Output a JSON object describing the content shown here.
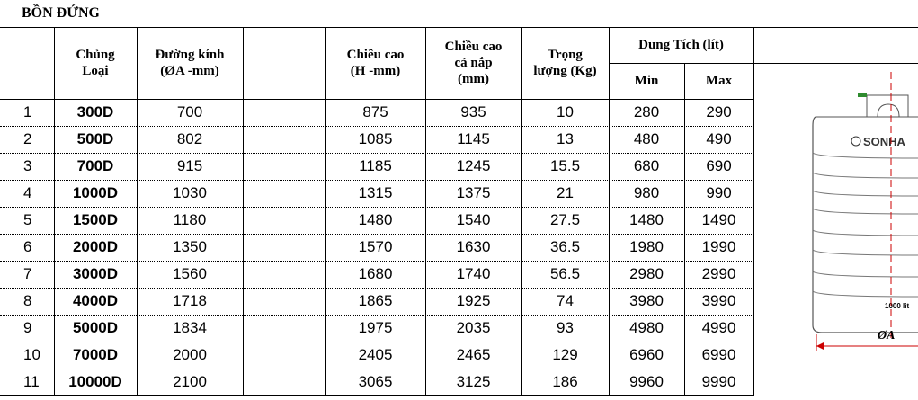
{
  "title": "BỒN ĐỨNG",
  "headers": {
    "type": "Chủng\nLoại",
    "diameter": "Đường kính\n(ØA -mm)",
    "height": "Chiều cao\n(H -mm)",
    "height_lid": "Chiều cao\ncả nắp\n(mm)",
    "weight": "Trọng\nlượng (Kg)",
    "capacity": "Dung Tích (lít)",
    "min": "Min",
    "max": "Max"
  },
  "rows": [
    {
      "no": "1",
      "type": "300D",
      "diameter": "700",
      "height": "875",
      "height_lid": "935",
      "weight": "10",
      "min": "280",
      "max": "290"
    },
    {
      "no": "2",
      "type": "500D",
      "diameter": "802",
      "height": "1085",
      "height_lid": "1145",
      "weight": "13",
      "min": "480",
      "max": "490"
    },
    {
      "no": "3",
      "type": "700D",
      "diameter": "915",
      "height": "1185",
      "height_lid": "1245",
      "weight": "15.5",
      "min": "680",
      "max": "690"
    },
    {
      "no": "4",
      "type": "1000D",
      "diameter": "1030",
      "height": "1315",
      "height_lid": "1375",
      "weight": "21",
      "min": "980",
      "max": "990"
    },
    {
      "no": "5",
      "type": "1500D",
      "diameter": "1180",
      "height": "1480",
      "height_lid": "1540",
      "weight": "27.5",
      "min": "1480",
      "max": "1490"
    },
    {
      "no": "6",
      "type": "2000D",
      "diameter": "1350",
      "height": "1570",
      "height_lid": "1630",
      "weight": "36.5",
      "min": "1980",
      "max": "1990"
    },
    {
      "no": "7",
      "type": "3000D",
      "diameter": "1560",
      "height": "1680",
      "height_lid": "1740",
      "weight": "56.5",
      "min": "2980",
      "max": "2990"
    },
    {
      "no": "8",
      "type": "4000D",
      "diameter": "1718",
      "height": "1865",
      "height_lid": "1925",
      "weight": "74",
      "min": "3980",
      "max": "3990"
    },
    {
      "no": "9",
      "type": "5000D",
      "diameter": "1834",
      "height": "1975",
      "height_lid": "2035",
      "weight": "93",
      "min": "4980",
      "max": "4990"
    },
    {
      "no": "10",
      "type": "7000D",
      "diameter": "2000",
      "height": "2405",
      "height_lid": "2465",
      "weight": "129",
      "min": "6960",
      "max": "6990"
    },
    {
      "no": "11",
      "type": "10000D",
      "diameter": "2100",
      "height": "3065",
      "height_lid": "3125",
      "weight": "186",
      "min": "9960",
      "max": "9990"
    }
  ],
  "drawing": {
    "logo_text": "SONHA",
    "volume_mark": "1000 lit",
    "dimension_label": "ØA",
    "guide_color": "#cc0000",
    "accent_color": "#2e8b2e"
  }
}
